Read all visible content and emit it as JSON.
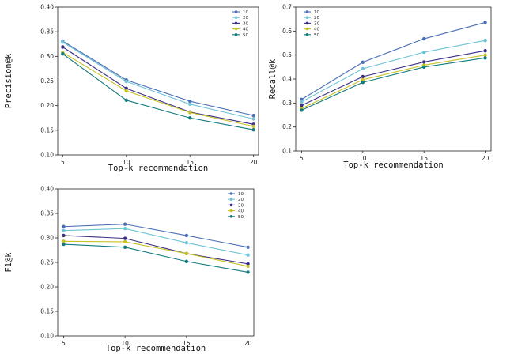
{
  "colors": {
    "10": "#4a6fb5",
    "20": "#6ec3d6",
    "30": "#3a2f86",
    "40": "#c8c224",
    "50": "#137a7f"
  },
  "chart_data": [
    {
      "type": "line",
      "x": [
        5,
        10,
        15,
        20
      ],
      "xlabel": "Top-k recommendation",
      "ylabel": "Precision@k",
      "ylim": [
        0.1,
        0.4
      ],
      "yticks": [
        "0.10",
        "0.15",
        "0.20",
        "0.25",
        "0.30",
        "0.35",
        "0.40"
      ],
      "xticks": [
        "5",
        "10",
        "15",
        "20"
      ],
      "legend_loc": "top-right",
      "grid": false,
      "series": [
        {
          "name": "10",
          "values": [
            0.331,
            0.252,
            0.209,
            0.18
          ]
        },
        {
          "name": "20",
          "values": [
            0.329,
            0.249,
            0.203,
            0.173
          ]
        },
        {
          "name": "30",
          "values": [
            0.319,
            0.235,
            0.187,
            0.162
          ]
        },
        {
          "name": "40",
          "values": [
            0.308,
            0.23,
            0.186,
            0.158
          ]
        },
        {
          "name": "50",
          "values": [
            0.305,
            0.211,
            0.175,
            0.151
          ]
        }
      ]
    },
    {
      "type": "line",
      "x": [
        5,
        10,
        15,
        20
      ],
      "xlabel": "Top-k recommendation",
      "ylabel": "Recall@k",
      "ylim": [
        0.1,
        0.7
      ],
      "yticks": [
        "0.1",
        "0.2",
        "0.3",
        "0.4",
        "0.5",
        "0.6",
        "0.7"
      ],
      "xticks": [
        "5",
        "10",
        "15",
        "20"
      ],
      "legend_loc": "top-left",
      "grid": false,
      "series": [
        {
          "name": "10",
          "values": [
            0.315,
            0.47,
            0.568,
            0.636
          ]
        },
        {
          "name": "20",
          "values": [
            0.305,
            0.443,
            0.512,
            0.561
          ]
        },
        {
          "name": "30",
          "values": [
            0.29,
            0.41,
            0.471,
            0.518
          ]
        },
        {
          "name": "40",
          "values": [
            0.277,
            0.397,
            0.458,
            0.5
          ]
        },
        {
          "name": "50",
          "values": [
            0.27,
            0.386,
            0.45,
            0.488
          ]
        }
      ]
    },
    {
      "type": "line",
      "x": [
        5,
        10,
        15,
        20
      ],
      "xlabel": "Top-k recommendation",
      "ylabel": "F1@k",
      "ylim": [
        0.1,
        0.4
      ],
      "yticks": [
        "0.10",
        "0.15",
        "0.20",
        "0.25",
        "0.30",
        "0.35",
        "0.40"
      ],
      "xticks": [
        "5",
        "10",
        "15",
        "20"
      ],
      "legend_loc": "top-right",
      "grid": false,
      "series": [
        {
          "name": "10",
          "values": [
            0.323,
            0.328,
            0.305,
            0.281
          ]
        },
        {
          "name": "20",
          "values": [
            0.315,
            0.319,
            0.29,
            0.265
          ]
        },
        {
          "name": "30",
          "values": [
            0.305,
            0.299,
            0.268,
            0.247
          ]
        },
        {
          "name": "40",
          "values": [
            0.293,
            0.292,
            0.268,
            0.242
          ]
        },
        {
          "name": "50",
          "values": [
            0.287,
            0.281,
            0.252,
            0.23
          ]
        }
      ]
    }
  ]
}
